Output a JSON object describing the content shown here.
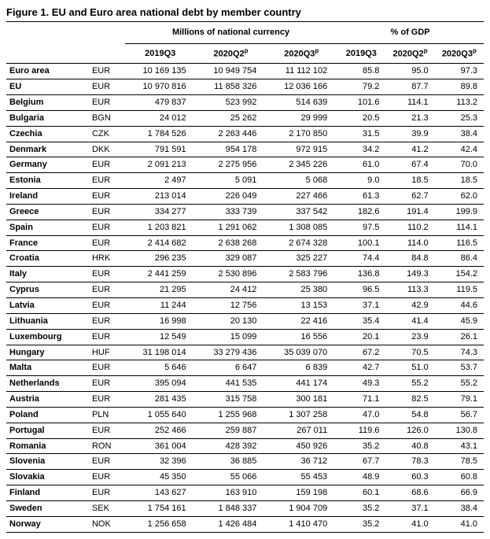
{
  "title": "Figure 1. EU and Euro area national debt by member country",
  "group_headers": {
    "millions": "Millions of national currency",
    "pct_gdp": "% of GDP"
  },
  "columns": {
    "p1": "2019Q3",
    "p2_html": "2020Q2<sup>p</sup>",
    "p3_html": "2020Q3<sup>p</sup>"
  },
  "rows": [
    {
      "country": "Euro area",
      "cur": "EUR",
      "v1": "10 169 135",
      "v2": "10 949 754",
      "v3": "11 112 102",
      "g1": "85.8",
      "g2": "95.0",
      "g3": "97.3"
    },
    {
      "country": "EU",
      "cur": "EUR",
      "v1": "10 970 816",
      "v2": "11 858 326",
      "v3": "12 036 166",
      "g1": "79.2",
      "g2": "87.7",
      "g3": "89.8"
    },
    {
      "country": "Belgium",
      "cur": "EUR",
      "v1": "479 837",
      "v2": "523 992",
      "v3": "514 639",
      "g1": "101.6",
      "g2": "114.1",
      "g3": "113.2"
    },
    {
      "country": "Bulgaria",
      "cur": "BGN",
      "v1": "24 012",
      "v2": "25 262",
      "v3": "29 999",
      "g1": "20.5",
      "g2": "21.3",
      "g3": "25.3"
    },
    {
      "country": "Czechia",
      "cur": "CZK",
      "v1": "1 784 526",
      "v2": "2 263 446",
      "v3": "2 170 850",
      "g1": "31.5",
      "g2": "39.9",
      "g3": "38.4"
    },
    {
      "country": "Denmark",
      "cur": "DKK",
      "v1": "791 591",
      "v2": "954 178",
      "v3": "972 915",
      "g1": "34.2",
      "g2": "41.2",
      "g3": "42.4"
    },
    {
      "country": "Germany",
      "cur": "EUR",
      "v1": "2 091 213",
      "v2": "2 275 956",
      "v3": "2 345 226",
      "g1": "61.0",
      "g2": "67.4",
      "g3": "70.0"
    },
    {
      "country": "Estonia",
      "cur": "EUR",
      "v1": "2 497",
      "v2": "5 091",
      "v3": "5 068",
      "g1": "9.0",
      "g2": "18.5",
      "g3": "18.5"
    },
    {
      "country": "Ireland",
      "cur": "EUR",
      "v1": "213 014",
      "v2": "226 049",
      "v3": "227 466",
      "g1": "61.3",
      "g2": "62.7",
      "g3": "62.0"
    },
    {
      "country": "Greece",
      "cur": "EUR",
      "v1": "334 277",
      "v2": "333 739",
      "v3": "337 542",
      "g1": "182.6",
      "g2": "191.4",
      "g3": "199.9"
    },
    {
      "country": "Spain",
      "cur": "EUR",
      "v1": "1 203 821",
      "v2": "1 291 062",
      "v3": "1 308 085",
      "g1": "97.5",
      "g2": "110.2",
      "g3": "114.1"
    },
    {
      "country": "France",
      "cur": "EUR",
      "v1": "2 414 682",
      "v2": "2 638 268",
      "v3": "2 674 328",
      "g1": "100.1",
      "g2": "114.0",
      "g3": "116.5"
    },
    {
      "country": "Croatia",
      "cur": "HRK",
      "v1": "296 235",
      "v2": "329 087",
      "v3": "325 227",
      "g1": "74.4",
      "g2": "84.8",
      "g3": "86.4"
    },
    {
      "country": "Italy",
      "cur": "EUR",
      "v1": "2 441 259",
      "v2": "2 530 896",
      "v3": "2 583 796",
      "g1": "136.8",
      "g2": "149.3",
      "g3": "154.2"
    },
    {
      "country": "Cyprus",
      "cur": "EUR",
      "v1": "21 295",
      "v2": "24 412",
      "v3": "25 380",
      "g1": "96.5",
      "g2": "113.3",
      "g3": "119.5"
    },
    {
      "country": "Latvia",
      "cur": "EUR",
      "v1": "11 244",
      "v2": "12 756",
      "v3": "13 153",
      "g1": "37.1",
      "g2": "42.9",
      "g3": "44.6"
    },
    {
      "country": "Lithuania",
      "cur": "EUR",
      "v1": "16 998",
      "v2": "20 130",
      "v3": "22 416",
      "g1": "35.4",
      "g2": "41.4",
      "g3": "45.9"
    },
    {
      "country": "Luxembourg",
      "cur": "EUR",
      "v1": "12 549",
      "v2": "15 099",
      "v3": "16 556",
      "g1": "20.1",
      "g2": "23.9",
      "g3": "26.1"
    },
    {
      "country": "Hungary",
      "cur": "HUF",
      "v1": "31 198 014",
      "v2": "33 279 436",
      "v3": "35 039 070",
      "g1": "67.2",
      "g2": "70.5",
      "g3": "74.3"
    },
    {
      "country": "Malta",
      "cur": "EUR",
      "v1": "5 646",
      "v2": "6 647",
      "v3": "6 839",
      "g1": "42.7",
      "g2": "51.0",
      "g3": "53.7"
    },
    {
      "country": "Netherlands",
      "cur": "EUR",
      "v1": "395 094",
      "v2": "441 535",
      "v3": "441 174",
      "g1": "49.3",
      "g2": "55.2",
      "g3": "55.2"
    },
    {
      "country": "Austria",
      "cur": "EUR",
      "v1": "281 435",
      "v2": "315 758",
      "v3": "300 181",
      "g1": "71.1",
      "g2": "82.5",
      "g3": "79.1"
    },
    {
      "country": "Poland",
      "cur": "PLN",
      "v1": "1 055 640",
      "v2": "1 255 968",
      "v3": "1 307 258",
      "g1": "47.0",
      "g2": "54.8",
      "g3": "56.7"
    },
    {
      "country": "Portugal",
      "cur": "EUR",
      "v1": "252 466",
      "v2": "259 887",
      "v3": "267 011",
      "g1": "119.6",
      "g2": "126.0",
      "g3": "130.8"
    },
    {
      "country": "Romania",
      "cur": "RON",
      "v1": "361 004",
      "v2": "428 392",
      "v3": "450 926",
      "g1": "35.2",
      "g2": "40.8",
      "g3": "43.1"
    },
    {
      "country": "Slovenia",
      "cur": "EUR",
      "v1": "32 396",
      "v2": "36 885",
      "v3": "36 712",
      "g1": "67.7",
      "g2": "78.3",
      "g3": "78.5"
    },
    {
      "country": "Slovakia",
      "cur": "EUR",
      "v1": "45 350",
      "v2": "55 066",
      "v3": "55 453",
      "g1": "48.9",
      "g2": "60.3",
      "g3": "60.8"
    },
    {
      "country": "Finland",
      "cur": "EUR",
      "v1": "143 627",
      "v2": "163 910",
      "v3": "159 198",
      "g1": "60.1",
      "g2": "68.6",
      "g3": "66.9"
    },
    {
      "country": "Sweden",
      "cur": "SEK",
      "v1": "1 754 161",
      "v2": "1 848 337",
      "v3": "1 904 709",
      "g1": "35.2",
      "g2": "37.1",
      "g3": "38.4"
    },
    {
      "country": "Norway",
      "cur": "NOK",
      "v1": "1 256 658",
      "v2": "1 426 484",
      "v3": "1 410 470",
      "g1": "35.2",
      "g2": "41.0",
      "g3": "41.0"
    }
  ]
}
